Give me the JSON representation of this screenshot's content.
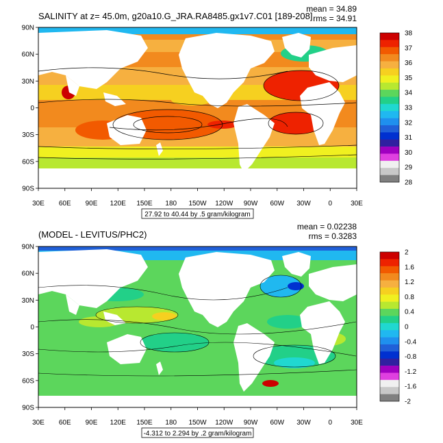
{
  "panels": [
    {
      "id": "salinity",
      "title": "SALINITY at z=  45.0m, g20a10.G_JRA.RA8485.gx1v7.C01 [189-208]",
      "mean_text": "mean = 34.89",
      "rms_text": "rms = 34.91",
      "range_label": "27.92 to 40.44 by .5 gram/kilogram",
      "colorbar_labels": [
        "38",
        "37",
        "36",
        "35",
        "34",
        "33",
        "32",
        "31",
        "30",
        "29",
        "28"
      ],
      "colorbar_colors": [
        "#cc0000",
        "#ee2200",
        "#f25a00",
        "#f28a1e",
        "#f6b040",
        "#f6d020",
        "#f0f020",
        "#b8e830",
        "#5cd65c",
        "#22d088",
        "#20d8d0",
        "#20b8f0",
        "#1f90ee",
        "#2060d8",
        "#0030d0",
        "#3020a0",
        "#a000c0",
        "#e040e0",
        "#f0f0f0",
        "#c8c8c8",
        "#808080"
      ]
    },
    {
      "id": "difference",
      "title": "(MODEL - LEVITUS/PHC2)",
      "mean_text": "mean = 0.02238",
      "rms_text": "rms = 0.3283",
      "range_label": "-4.312 to 2.294 by .2 gram/kilogram",
      "colorbar_labels": [
        "2",
        "1.6",
        "1.2",
        "0.8",
        "0.4",
        "0",
        "-0.4",
        "-0.8",
        "-1.2",
        "-1.6",
        "-2"
      ],
      "colorbar_colors": [
        "#cc0000",
        "#ee2200",
        "#f25a00",
        "#f28a1e",
        "#f6b040",
        "#f6d020",
        "#f0f020",
        "#b8e830",
        "#5cd65c",
        "#22d088",
        "#20d8d0",
        "#20b8f0",
        "#1f90ee",
        "#2060d8",
        "#0030d0",
        "#3020a0",
        "#a000c0",
        "#e040e0",
        "#f0f0f0",
        "#c8c8c8",
        "#808080"
      ]
    }
  ],
  "lat_ticks": [
    "90N",
    "60N",
    "30N",
    "0",
    "30S",
    "60S",
    "90S"
  ],
  "lon_ticks": [
    "30E",
    "60E",
    "90E",
    "120E",
    "150E",
    "180",
    "150W",
    "120W",
    "90W",
    "60W",
    "30W",
    "0",
    "30E"
  ]
}
